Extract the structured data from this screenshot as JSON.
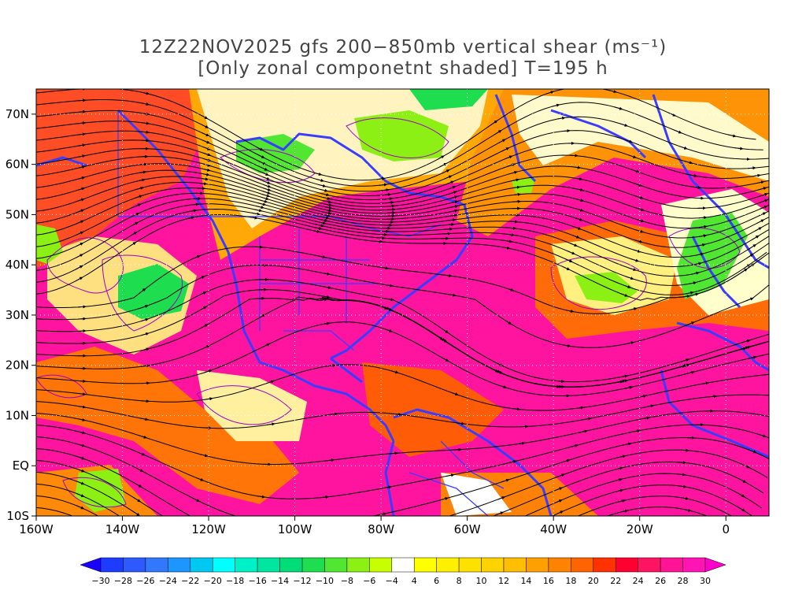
{
  "title": {
    "line1": "12Z22NOV2025 gfs 200−850mb vertical shear (ms⁻¹)",
    "line2": "[Only zonal componetnt shaded] T=195 h"
  },
  "map": {
    "lon_range": [
      -160,
      10
    ],
    "lat_range": [
      -10,
      75
    ],
    "lat_ticks": [
      {
        "value": 70,
        "label": "70N"
      },
      {
        "value": 60,
        "label": "60N"
      },
      {
        "value": 50,
        "label": "50N"
      },
      {
        "value": 40,
        "label": "40N"
      },
      {
        "value": 30,
        "label": "30N"
      },
      {
        "value": 20,
        "label": "20N"
      },
      {
        "value": 10,
        "label": "10N"
      },
      {
        "value": 0,
        "label": "EQ"
      },
      {
        "value": -10,
        "label": "10S"
      }
    ],
    "lon_ticks": [
      {
        "value": -160,
        "label": "160W"
      },
      {
        "value": -140,
        "label": "140W"
      },
      {
        "value": -120,
        "label": "120W"
      },
      {
        "value": -100,
        "label": "100W"
      },
      {
        "value": -80,
        "label": "80W"
      },
      {
        "value": -60,
        "label": "60W"
      },
      {
        "value": -40,
        "label": "40W"
      },
      {
        "value": -20,
        "label": "20W"
      },
      {
        "value": 0,
        "label": "0"
      }
    ],
    "grid": true
  },
  "colorbar": {
    "labels": [
      "−30",
      "−28",
      "−26",
      "−24",
      "−22",
      "−20",
      "−18",
      "−16",
      "−14",
      "−12",
      "−10",
      "−8",
      "−6",
      "−4",
      "4",
      "6",
      "8",
      "10",
      "12",
      "14",
      "16",
      "18",
      "20",
      "22",
      "24",
      "26",
      "28",
      "30"
    ],
    "colors": [
      "#1a00ff",
      "#1e3cff",
      "#2d5aff",
      "#3278ff",
      "#1e96ff",
      "#00c8f0",
      "#00ffff",
      "#00f0c8",
      "#00e6a0",
      "#00dc78",
      "#1ede50",
      "#50e632",
      "#8cf014",
      "#c8ff00",
      "#ffffff",
      "#ffff00",
      "#fff000",
      "#ffe100",
      "#ffd200",
      "#ffbe00",
      "#ffa000",
      "#ff8200",
      "#ff6400",
      "#ff3200",
      "#ff0032",
      "#ff1464",
      "#ff1496",
      "#ff14b4",
      "#ff00c8"
    ]
  }
}
